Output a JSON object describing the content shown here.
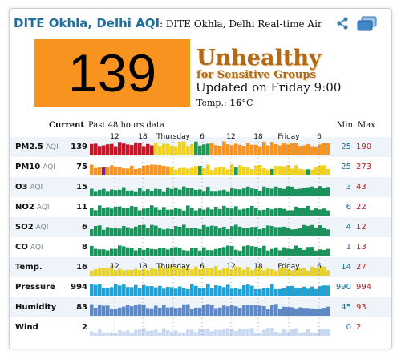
{
  "header": {
    "city": "DITE Okhla, Delhi AQI",
    "subtitle": ": DITE Okhla, Delhi Real-time Air"
  },
  "icons": {
    "share": "share-icon",
    "widget": "stacked-windows-icon"
  },
  "aqi": {
    "value": "139",
    "color": "#f7931e",
    "level_line1": "Unhealthy",
    "level_line2": "for Sensitive Groups",
    "updated": "Updated on Friday 9:00",
    "temp_label": "Temp.:",
    "temp_value": "16",
    "temp_unit": "°C"
  },
  "columns": {
    "current": "Current",
    "history": "Past 48 hours data",
    "min": "Min",
    "max": "Max"
  },
  "time_axis": [
    "12",
    "18",
    "Thursday",
    "6",
    "12",
    "18",
    "Friday",
    "6"
  ],
  "rows": [
    {
      "name": "PM2.5",
      "suffix": "AQI",
      "current": "139",
      "min": "25",
      "max": "190"
    },
    {
      "name": "PM10",
      "suffix": "AQI",
      "current": "75",
      "min": "25",
      "max": "273"
    },
    {
      "name": "O3",
      "suffix": "AQI",
      "current": "15",
      "min": "3",
      "max": "43"
    },
    {
      "name": "NO2",
      "suffix": "AQI",
      "current": "11",
      "min": "6",
      "max": "22"
    },
    {
      "name": "SO2",
      "suffix": "AQI",
      "current": "6",
      "min": "4",
      "max": "12"
    },
    {
      "name": "CO",
      "suffix": "AQI",
      "current": "8",
      "min": "1",
      "max": "13"
    },
    {
      "name": "Temp.",
      "suffix": "",
      "current": "16",
      "min": "14",
      "max": "27"
    },
    {
      "name": "Pressure",
      "suffix": "",
      "current": "994",
      "min": "990",
      "max": "994"
    },
    {
      "name": "Humidity",
      "suffix": "",
      "current": "83",
      "min": "45",
      "max": "93"
    },
    {
      "name": "Wind",
      "suffix": "",
      "current": "2",
      "min": "0",
      "max": "2"
    }
  ]
}
